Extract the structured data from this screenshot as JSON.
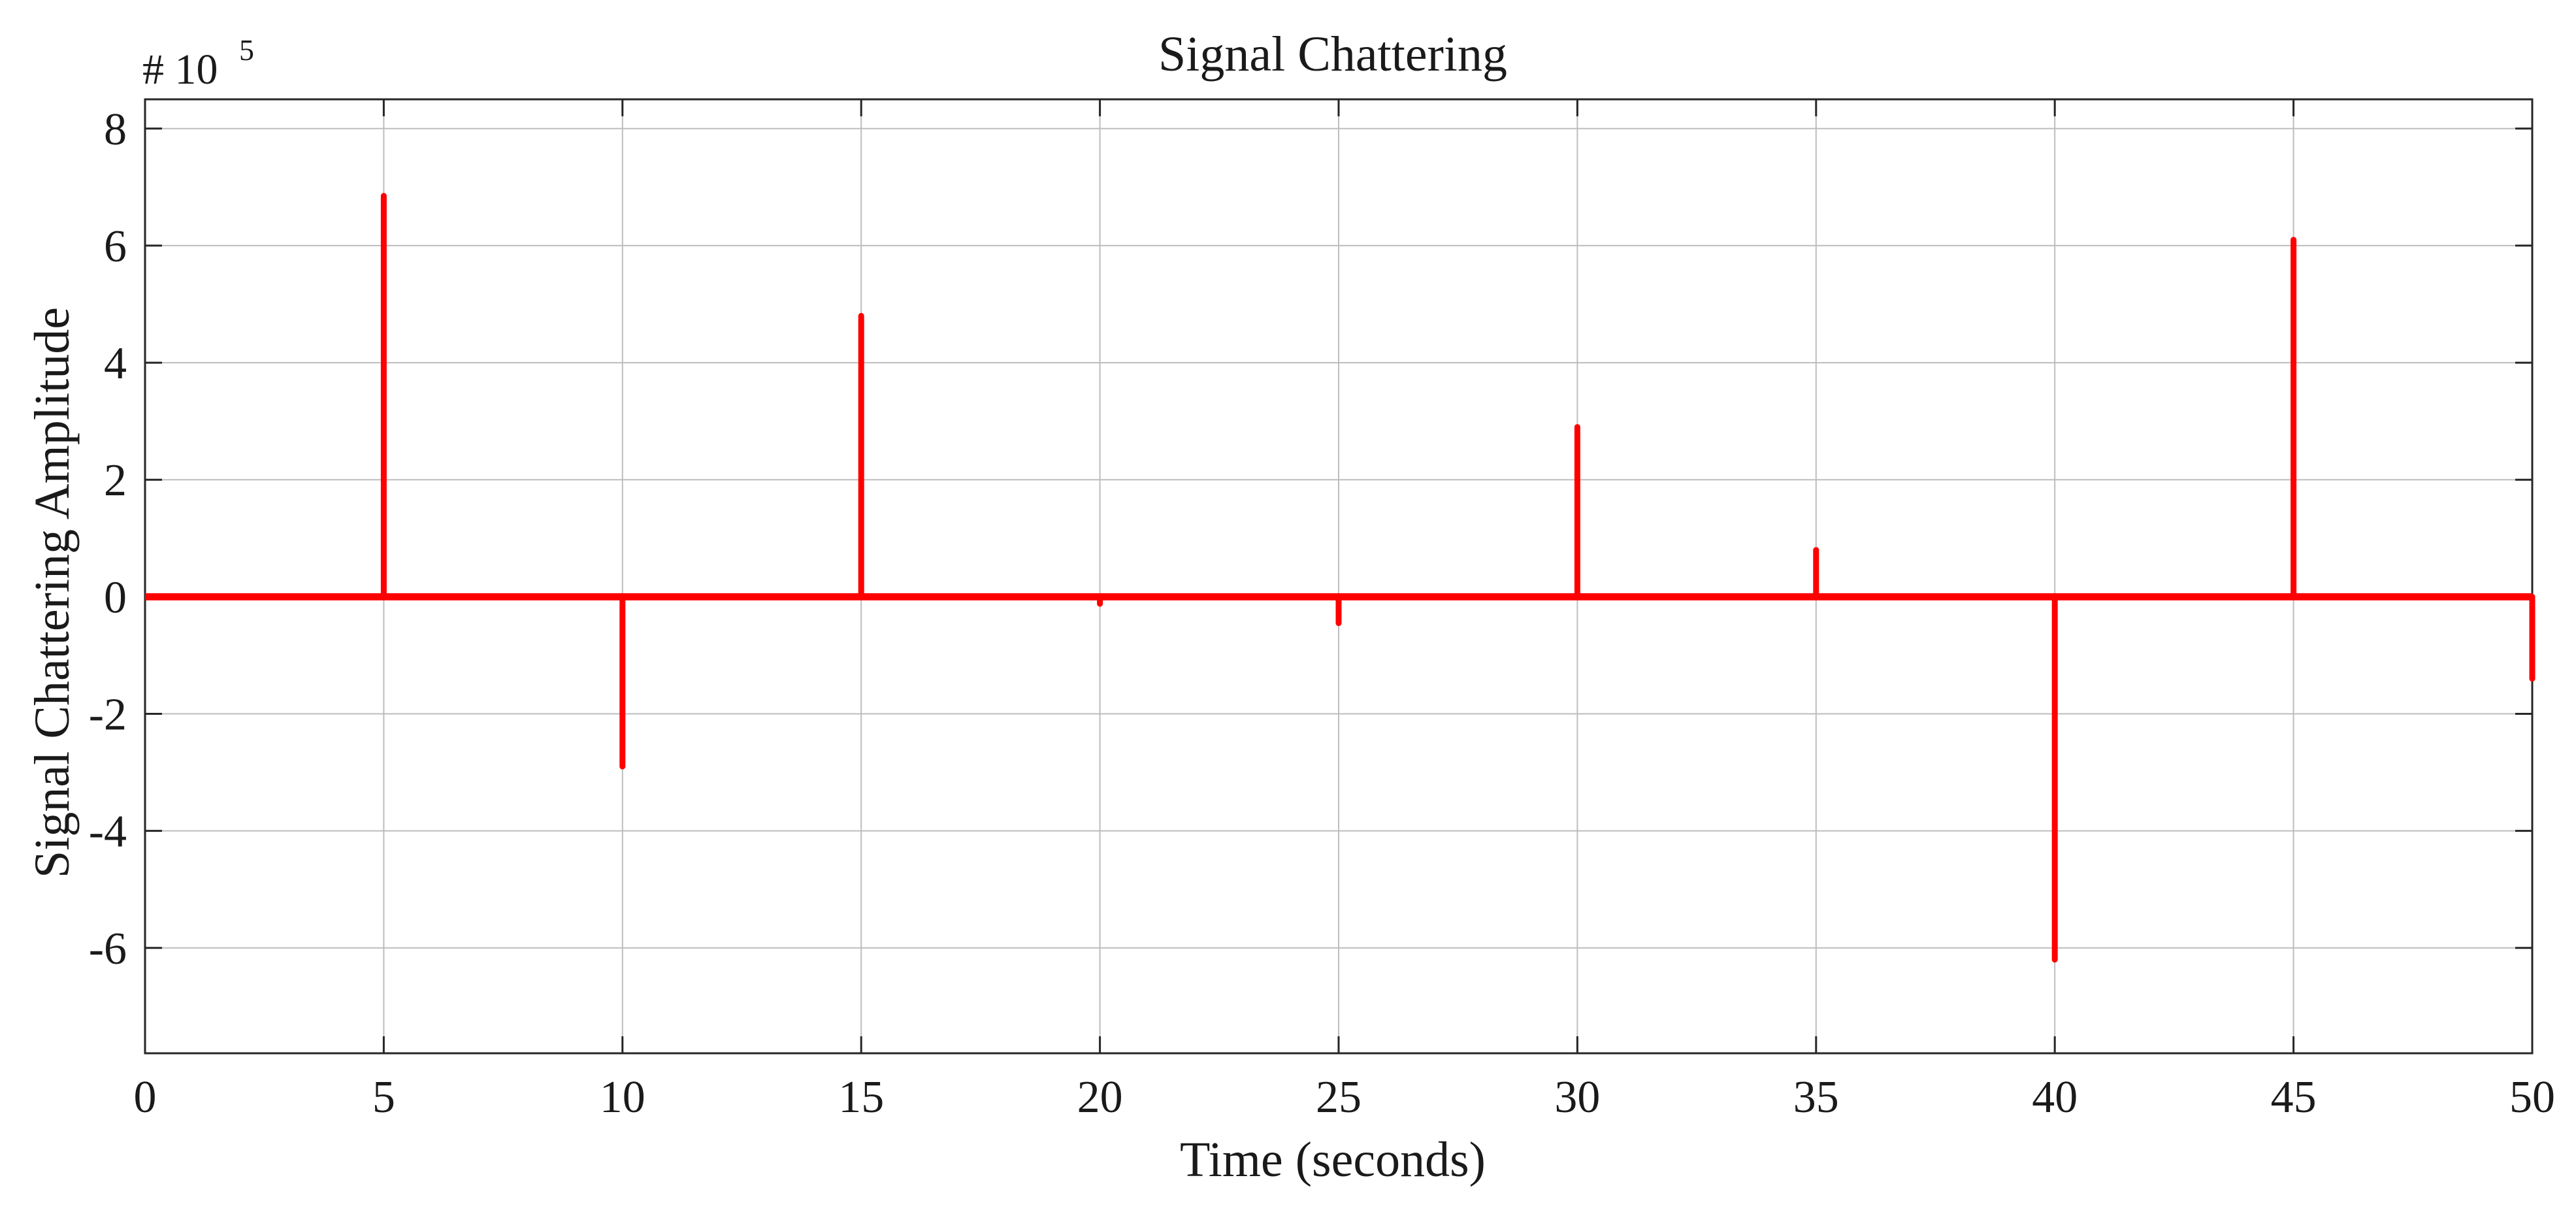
{
  "chart_data": {
    "type": "line",
    "title": "Signal Chattering",
    "xlabel": "Time (seconds)",
    "ylabel": "Signal Chattering Amplitude",
    "exponent_label": "# 10",
    "exponent_power": "5",
    "xlim": [
      0,
      50
    ],
    "ylim": [
      -7.8,
      8.5
    ],
    "xticks": [
      0,
      5,
      10,
      15,
      20,
      25,
      30,
      35,
      40,
      45,
      50
    ],
    "yticks": [
      -6,
      -4,
      -2,
      0,
      2,
      4,
      6,
      8
    ],
    "xtick_labels": [
      "0",
      "5",
      "10",
      "15",
      "20",
      "25",
      "30",
      "35",
      "40",
      "45",
      "50"
    ],
    "ytick_labels": [
      "-6",
      "-4",
      "-2",
      "0",
      "2",
      "4",
      "6",
      "8"
    ],
    "grid": true,
    "series": [
      {
        "color": "#ff0000",
        "baseline": 0,
        "spikes": [
          {
            "x": 5,
            "y": 6.85
          },
          {
            "x": 10,
            "y": -2.9
          },
          {
            "x": 15,
            "y": 4.8
          },
          {
            "x": 20,
            "y": -0.12
          },
          {
            "x": 25,
            "y": -0.45
          },
          {
            "x": 30,
            "y": 2.9
          },
          {
            "x": 35,
            "y": 0.8
          },
          {
            "x": 40,
            "y": -6.2
          },
          {
            "x": 45,
            "y": 6.1
          },
          {
            "x": 50,
            "y": -1.4
          }
        ]
      }
    ]
  }
}
